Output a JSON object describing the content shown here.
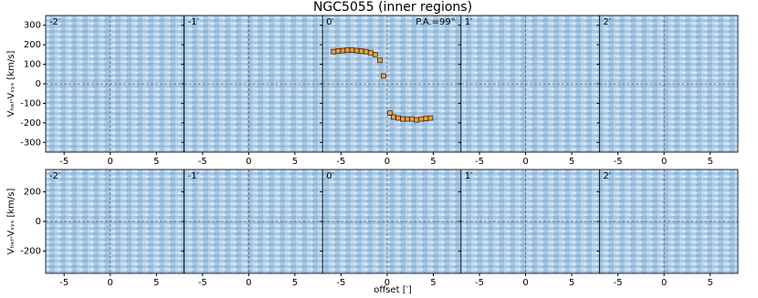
{
  "figure": {
    "title": "NGC5055 (inner regions)",
    "xlabel": "offset [′]",
    "ylabel_top": "Vₕₑₗ-Vₛᵧₛ [km/s]",
    "ylabel_bottom": "Vₕₑₗ-Vₛᵧₛ [km/s]"
  },
  "chart_data": [
    {
      "type": "pv",
      "label": "-2′",
      "xlim": [
        -7,
        8
      ],
      "xticks": [
        -5,
        0,
        5
      ],
      "ylim": [
        -350,
        350
      ],
      "yticks": [
        -300,
        -200,
        -100,
        0,
        100,
        200,
        300
      ]
    },
    {
      "type": "pv",
      "label": "-1′",
      "xlim": [
        -7,
        8
      ],
      "xticks": [
        -5,
        0,
        5
      ],
      "ylim": [
        -350,
        350
      ],
      "yticks": [
        -300,
        -200,
        -100,
        0,
        100,
        200,
        300
      ]
    },
    {
      "type": "pv",
      "label": "0′",
      "annotation": "P.A.=99°",
      "xlim": [
        -7,
        8
      ],
      "xticks": [
        -5,
        0,
        5
      ],
      "ylim": [
        -350,
        350
      ],
      "yticks": [
        -300,
        -200,
        -100,
        0,
        100,
        200,
        300
      ],
      "color": "#f39c34",
      "x": [
        -5.8,
        -5.3,
        -4.8,
        -4.3,
        -3.8,
        -3.3,
        -2.8,
        -2.3,
        -1.8,
        -1.3,
        -0.8,
        -0.4,
        0.3,
        0.7,
        1.2,
        1.7,
        2.2,
        2.7,
        3.2,
        3.7,
        4.2,
        4.7
      ],
      "values": [
        165,
        168,
        170,
        172,
        172,
        170,
        168,
        165,
        160,
        150,
        120,
        40,
        -150,
        -170,
        -175,
        -180,
        -180,
        -180,
        -185,
        -180,
        -178,
        -175
      ]
    },
    {
      "type": "pv",
      "label": "1′",
      "xlim": [
        -7,
        8
      ],
      "xticks": [
        -5,
        0,
        5
      ],
      "ylim": [
        -350,
        350
      ],
      "yticks": [
        -300,
        -200,
        -100,
        0,
        100,
        200,
        300
      ]
    },
    {
      "type": "pv",
      "label": "2′",
      "xlim": [
        -7,
        8
      ],
      "xticks": [
        -5,
        0,
        5
      ],
      "ylim": [
        -350,
        350
      ],
      "yticks": [
        -300,
        -200,
        -100,
        0,
        100,
        200,
        300
      ]
    },
    {
      "type": "pv",
      "label": "-2′",
      "xlim": [
        -7,
        8
      ],
      "xticks": [
        -5,
        0,
        5
      ],
      "ylim": [
        -350,
        350
      ],
      "yticks": [
        -200,
        0,
        200
      ]
    },
    {
      "type": "pv",
      "label": "-1′",
      "xlim": [
        -7,
        8
      ],
      "xticks": [
        -5,
        0,
        5
      ],
      "ylim": [
        -350,
        350
      ],
      "yticks": [
        -200,
        0,
        200
      ]
    },
    {
      "type": "pv",
      "label": "0′",
      "xlim": [
        -7,
        8
      ],
      "xticks": [
        -5,
        0,
        5
      ],
      "ylim": [
        -350,
        350
      ],
      "yticks": [
        -200,
        0,
        200
      ]
    },
    {
      "type": "pv",
      "label": "1′",
      "xlim": [
        -7,
        8
      ],
      "xticks": [
        -5,
        0,
        5
      ],
      "ylim": [
        -350,
        350
      ],
      "yticks": [
        -200,
        0,
        200
      ]
    },
    {
      "type": "pv",
      "label": "2′",
      "xlim": [
        -7,
        8
      ],
      "xticks": [
        -5,
        0,
        5
      ],
      "ylim": [
        -350,
        350
      ],
      "yticks": [
        -200,
        0,
        200
      ]
    }
  ]
}
